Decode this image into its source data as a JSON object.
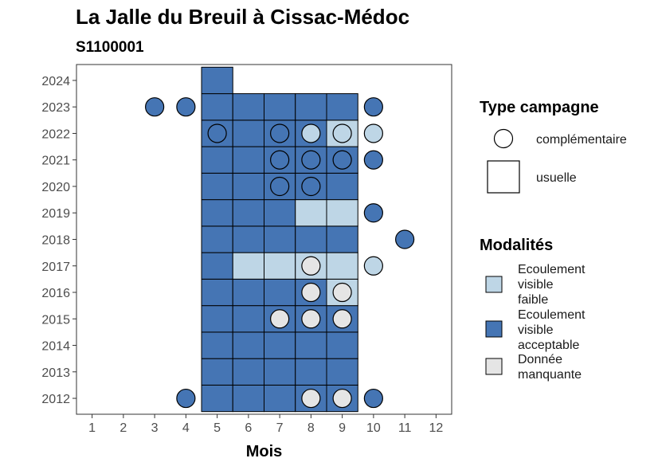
{
  "chart_data": {
    "type": "heatmap",
    "title": "La Jalle du Breuil à Cissac-Médoc",
    "subtitle": "S1100001",
    "xlabel": "Mois",
    "ylabel": "",
    "x_ticks": [
      "1",
      "2",
      "3",
      "4",
      "5",
      "6",
      "7",
      "8",
      "9",
      "10",
      "11",
      "12"
    ],
    "y_ticks": [
      "2012",
      "2013",
      "2014",
      "2015",
      "2016",
      "2017",
      "2018",
      "2019",
      "2020",
      "2021",
      "2022",
      "2023",
      "2024"
    ],
    "xlim": [
      0.5,
      12.5
    ],
    "ylim": [
      2011.4,
      2024.6
    ],
    "grid": false,
    "legend_position": "right",
    "colors": {
      "Ecoulement visible faible": "#bed6e6",
      "Ecoulement visible acceptable": "#4575b4",
      "Donnée manquante": "#e5e5e5"
    },
    "legends": {
      "type_title": "Type campagne",
      "type_items": [
        {
          "shape": "circle",
          "label": "complémentaire"
        },
        {
          "shape": "square",
          "label": "usuelle"
        }
      ],
      "mod_title": "Modalités",
      "mod_items": [
        {
          "key": "faible",
          "label_lines": [
            "Ecoulement",
            "visible",
            "faible"
          ],
          "color": "#bed6e6"
        },
        {
          "key": "acceptable",
          "label_lines": [
            "Ecoulement",
            "visible",
            "acceptable"
          ],
          "color": "#4575b4"
        },
        {
          "key": "manquante",
          "label_lines": [
            "Donnée",
            "manquante"
          ],
          "color": "#e5e5e5"
        }
      ]
    },
    "usuelle": [
      {
        "year": 2012,
        "months": {
          "5": "acceptable",
          "6": "acceptable",
          "7": "acceptable",
          "8": "acceptable",
          "9": "acceptable"
        }
      },
      {
        "year": 2013,
        "months": {
          "5": "acceptable",
          "6": "acceptable",
          "7": "acceptable",
          "8": "acceptable",
          "9": "acceptable"
        }
      },
      {
        "year": 2014,
        "months": {
          "5": "acceptable",
          "6": "acceptable",
          "7": "acceptable",
          "8": "acceptable",
          "9": "acceptable"
        }
      },
      {
        "year": 2015,
        "months": {
          "5": "acceptable",
          "6": "acceptable",
          "7": "acceptable",
          "8": "acceptable",
          "9": "acceptable"
        }
      },
      {
        "year": 2016,
        "months": {
          "5": "acceptable",
          "6": "acceptable",
          "7": "acceptable",
          "8": "acceptable",
          "9": "faible"
        }
      },
      {
        "year": 2017,
        "months": {
          "5": "acceptable",
          "6": "faible",
          "7": "faible",
          "8": "faible",
          "9": "faible"
        }
      },
      {
        "year": 2018,
        "months": {
          "5": "acceptable",
          "6": "acceptable",
          "7": "acceptable",
          "8": "acceptable",
          "9": "acceptable"
        }
      },
      {
        "year": 2019,
        "months": {
          "5": "acceptable",
          "6": "acceptable",
          "7": "acceptable",
          "8": "faible",
          "9": "faible"
        }
      },
      {
        "year": 2020,
        "months": {
          "5": "acceptable",
          "6": "acceptable",
          "7": "acceptable",
          "8": "acceptable",
          "9": "acceptable"
        }
      },
      {
        "year": 2021,
        "months": {
          "5": "acceptable",
          "6": "acceptable",
          "7": "acceptable",
          "8": "acceptable",
          "9": "acceptable"
        }
      },
      {
        "year": 2022,
        "months": {
          "5": "acceptable",
          "6": "acceptable",
          "7": "acceptable",
          "8": "acceptable",
          "9": "faible"
        }
      },
      {
        "year": 2023,
        "months": {
          "5": "acceptable",
          "6": "acceptable",
          "7": "acceptable",
          "8": "acceptable",
          "9": "acceptable"
        }
      },
      {
        "year": 2024,
        "months": {
          "5": "acceptable"
        }
      }
    ],
    "complementaire": [
      {
        "year": 2012,
        "month": 4,
        "value": "acceptable"
      },
      {
        "year": 2012,
        "month": 8,
        "value": "manquante"
      },
      {
        "year": 2012,
        "month": 9,
        "value": "manquante"
      },
      {
        "year": 2012,
        "month": 10,
        "value": "acceptable"
      },
      {
        "year": 2015,
        "month": 7,
        "value": "manquante"
      },
      {
        "year": 2015,
        "month": 8,
        "value": "manquante"
      },
      {
        "year": 2015,
        "month": 9,
        "value": "manquante"
      },
      {
        "year": 2016,
        "month": 8,
        "value": "manquante"
      },
      {
        "year": 2016,
        "month": 9,
        "value": "manquante"
      },
      {
        "year": 2017,
        "month": 8,
        "value": "manquante"
      },
      {
        "year": 2017,
        "month": 10,
        "value": "faible"
      },
      {
        "year": 2018,
        "month": 11,
        "value": "acceptable"
      },
      {
        "year": 2019,
        "month": 10,
        "value": "acceptable"
      },
      {
        "year": 2020,
        "month": 7,
        "value": "acceptable"
      },
      {
        "year": 2020,
        "month": 8,
        "value": "acceptable"
      },
      {
        "year": 2021,
        "month": 7,
        "value": "acceptable"
      },
      {
        "year": 2021,
        "month": 8,
        "value": "acceptable"
      },
      {
        "year": 2021,
        "month": 9,
        "value": "acceptable"
      },
      {
        "year": 2021,
        "month": 10,
        "value": "acceptable"
      },
      {
        "year": 2022,
        "month": 5,
        "value": "acceptable"
      },
      {
        "year": 2022,
        "month": 7,
        "value": "acceptable"
      },
      {
        "year": 2022,
        "month": 8,
        "value": "faible"
      },
      {
        "year": 2022,
        "month": 9,
        "value": "faible"
      },
      {
        "year": 2022,
        "month": 10,
        "value": "faible"
      },
      {
        "year": 2023,
        "month": 3,
        "value": "acceptable"
      },
      {
        "year": 2023,
        "month": 4,
        "value": "acceptable"
      },
      {
        "year": 2023,
        "month": 10,
        "value": "acceptable"
      }
    ]
  }
}
